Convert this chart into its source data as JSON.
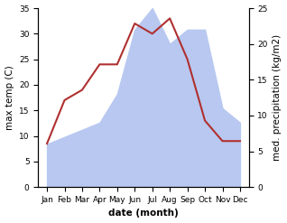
{
  "months": [
    "Jan",
    "Feb",
    "Mar",
    "Apr",
    "May",
    "Jun",
    "Jul",
    "Aug",
    "Sep",
    "Oct",
    "Nov",
    "Dec"
  ],
  "temperature": [
    8.5,
    17.0,
    19.0,
    24.0,
    24.0,
    32.0,
    30.0,
    33.0,
    25.0,
    13.0,
    9.0,
    9.0
  ],
  "precipitation": [
    6.0,
    7.0,
    8.0,
    9.0,
    13.0,
    22.0,
    25.0,
    20.0,
    22.0,
    22.0,
    11.0,
    9.0
  ],
  "temp_color": "#b03030",
  "precip_fill_color": "#b8c8f0",
  "ylabel_left": "max temp (C)",
  "ylabel_right": "med. precipitation (kg/m2)",
  "xlabel": "date (month)",
  "ylim_left": [
    0,
    35
  ],
  "ylim_right": [
    0,
    25
  ],
  "yticks_left": [
    0,
    5,
    10,
    15,
    20,
    25,
    30,
    35
  ],
  "yticks_right": [
    0,
    5,
    10,
    15,
    20,
    25
  ],
  "bg_color": "#ffffff",
  "label_fontsize": 7.5,
  "tick_fontsize": 6.5
}
